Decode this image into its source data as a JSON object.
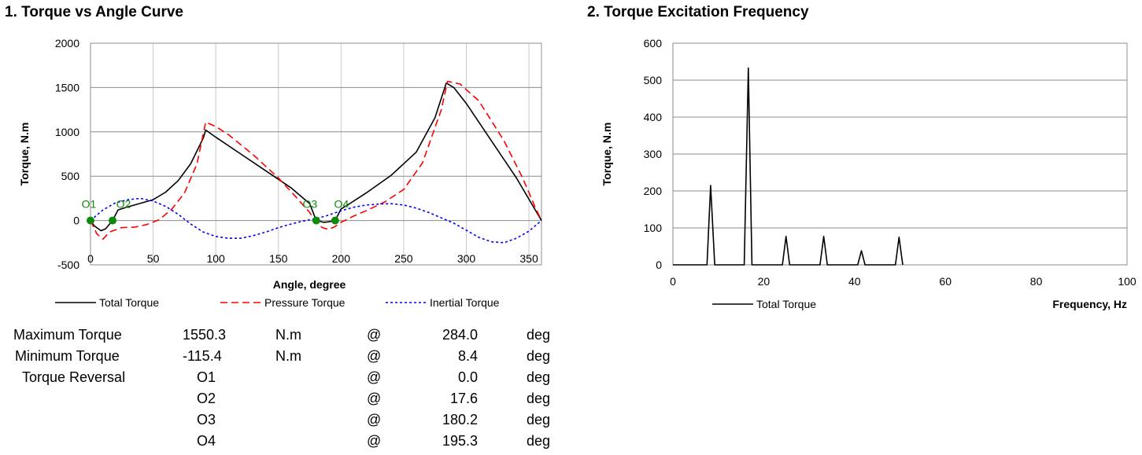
{
  "titles": {
    "chart1": "1. Torque vs Angle Curve",
    "chart2": "2. Torque Excitation Frequency"
  },
  "chart_data": [
    {
      "type": "line",
      "title": "1. Torque vs Angle Curve",
      "xlabel": "Angle, degree",
      "ylabel": "Torque, N.m",
      "xlim": [
        0,
        360
      ],
      "ylim": [
        -500,
        2000
      ],
      "xticks": [
        0,
        50,
        100,
        150,
        200,
        250,
        300,
        350
      ],
      "yticks": [
        -500,
        0,
        500,
        1000,
        1500,
        2000
      ],
      "grid": true,
      "legend": "bottom",
      "series": [
        {
          "name": "Total Torque",
          "color": "#000000",
          "dash": "solid",
          "points": [
            [
              0,
              0
            ],
            [
              3,
              -60
            ],
            [
              8.4,
              -115.4
            ],
            [
              12,
              -95
            ],
            [
              17.6,
              0
            ],
            [
              22,
              120
            ],
            [
              30,
              155
            ],
            [
              40,
              195
            ],
            [
              50,
              235
            ],
            [
              60,
              320
            ],
            [
              70,
              450
            ],
            [
              80,
              640
            ],
            [
              90,
              930
            ],
            [
              92,
              1020
            ],
            [
              100,
              940
            ],
            [
              120,
              750
            ],
            [
              140,
              560
            ],
            [
              160,
              370
            ],
            [
              175,
              190
            ],
            [
              180.2,
              0
            ],
            [
              186,
              -20
            ],
            [
              190,
              -15
            ],
            [
              195.3,
              0
            ],
            [
              200,
              130
            ],
            [
              208,
              200
            ],
            [
              220,
              310
            ],
            [
              240,
              510
            ],
            [
              260,
              770
            ],
            [
              275,
              1160
            ],
            [
              284,
              1550.3
            ],
            [
              290,
              1500
            ],
            [
              300,
              1320
            ],
            [
              320,
              900
            ],
            [
              340,
              480
            ],
            [
              360,
              0
            ]
          ]
        },
        {
          "name": "Pressure Torque",
          "color": "#ff0000",
          "dash": "dashed",
          "points": [
            [
              0,
              0
            ],
            [
              5,
              -150
            ],
            [
              10,
              -210
            ],
            [
              15,
              -130
            ],
            [
              25,
              -80
            ],
            [
              35,
              -75
            ],
            [
              45,
              -45
            ],
            [
              55,
              10
            ],
            [
              65,
              130
            ],
            [
              75,
              310
            ],
            [
              85,
              640
            ],
            [
              92,
              1110
            ],
            [
              100,
              1060
            ],
            [
              110,
              970
            ],
            [
              130,
              740
            ],
            [
              150,
              480
            ],
            [
              165,
              250
            ],
            [
              175,
              90
            ],
            [
              180,
              -20
            ],
            [
              185,
              -80
            ],
            [
              190,
              -100
            ],
            [
              195,
              -70
            ],
            [
              200,
              -20
            ],
            [
              210,
              50
            ],
            [
              220,
              110
            ],
            [
              235,
              210
            ],
            [
              250,
              350
            ],
            [
              265,
              650
            ],
            [
              280,
              1250
            ],
            [
              285,
              1570
            ],
            [
              295,
              1540
            ],
            [
              310,
              1350
            ],
            [
              330,
              900
            ],
            [
              345,
              480
            ],
            [
              355,
              150
            ],
            [
              360,
              0
            ]
          ]
        },
        {
          "name": "Inertial Torque",
          "color": "#0000ff",
          "dash": "dotted",
          "points": [
            [
              0,
              0
            ],
            [
              10,
              120
            ],
            [
              20,
              200
            ],
            [
              30,
              235
            ],
            [
              40,
              250
            ],
            [
              50,
              220
            ],
            [
              60,
              160
            ],
            [
              70,
              70
            ],
            [
              80,
              -40
            ],
            [
              90,
              -130
            ],
            [
              100,
              -180
            ],
            [
              110,
              -200
            ],
            [
              120,
              -200
            ],
            [
              130,
              -170
            ],
            [
              140,
              -130
            ],
            [
              150,
              -80
            ],
            [
              160,
              -40
            ],
            [
              170,
              -5
            ],
            [
              180,
              20
            ],
            [
              190,
              60
            ],
            [
              200,
              110
            ],
            [
              210,
              150
            ],
            [
              220,
              175
            ],
            [
              230,
              185
            ],
            [
              240,
              190
            ],
            [
              250,
              175
            ],
            [
              260,
              140
            ],
            [
              270,
              90
            ],
            [
              280,
              30
            ],
            [
              290,
              -30
            ],
            [
              300,
              -110
            ],
            [
              310,
              -190
            ],
            [
              320,
              -240
            ],
            [
              330,
              -250
            ],
            [
              340,
              -200
            ],
            [
              350,
              -120
            ],
            [
              360,
              0
            ]
          ]
        }
      ],
      "markers": [
        {
          "label": "O1",
          "x": 0.0,
          "y": 0
        },
        {
          "label": "O2",
          "x": 17.6,
          "y": 0
        },
        {
          "label": "O3",
          "x": 180.2,
          "y": 0
        },
        {
          "label": "O4",
          "x": 195.3,
          "y": 0
        }
      ],
      "marker_color": "#0b8a0b"
    },
    {
      "type": "line",
      "title": "2. Torque Excitation Frequency",
      "xlabel": "Frequency, Hz",
      "ylabel": "Torque, N.m",
      "xlim": [
        0,
        100
      ],
      "ylim": [
        0,
        600
      ],
      "xticks": [
        0,
        20,
        40,
        60,
        80,
        100
      ],
      "yticks": [
        0,
        100,
        200,
        300,
        400,
        500,
        600
      ],
      "grid": true,
      "legend": "bottom-left",
      "series": [
        {
          "name": "Total Torque",
          "color": "#000000",
          "points": [
            [
              0,
              0
            ],
            [
              7.5,
              0
            ],
            [
              8.3,
              215
            ],
            [
              9.2,
              0
            ],
            [
              15.7,
              0
            ],
            [
              16.6,
              533
            ],
            [
              17.4,
              0
            ],
            [
              24.1,
              0
            ],
            [
              24.9,
              77
            ],
            [
              25.7,
              0
            ],
            [
              32.4,
              0
            ],
            [
              33.2,
              77
            ],
            [
              34,
              0
            ],
            [
              40.7,
              0
            ],
            [
              41.5,
              38
            ],
            [
              42.3,
              0
            ],
            [
              49,
              0
            ],
            [
              49.8,
              75
            ],
            [
              50.6,
              0
            ]
          ]
        }
      ]
    }
  ],
  "results": {
    "rows": [
      {
        "label": "Maximum Torque",
        "value": "1550.3",
        "unit": "N.m",
        "at": "@",
        "angle": "284.0",
        "angle_unit": "deg"
      },
      {
        "label": "Minimum Torque",
        "value": "-115.4",
        "unit": "N.m",
        "at": "@",
        "angle": "8.4",
        "angle_unit": "deg"
      },
      {
        "label": "Torque Reversal",
        "value": "O1",
        "unit": "",
        "at": "@",
        "angle": "0.0",
        "angle_unit": "deg"
      },
      {
        "label": "",
        "value": "O2",
        "unit": "",
        "at": "@",
        "angle": "17.6",
        "angle_unit": "deg"
      },
      {
        "label": "",
        "value": "O3",
        "unit": "",
        "at": "@",
        "angle": "180.2",
        "angle_unit": "deg"
      },
      {
        "label": "",
        "value": "O4",
        "unit": "",
        "at": "@",
        "angle": "195.3",
        "angle_unit": "deg"
      }
    ]
  }
}
